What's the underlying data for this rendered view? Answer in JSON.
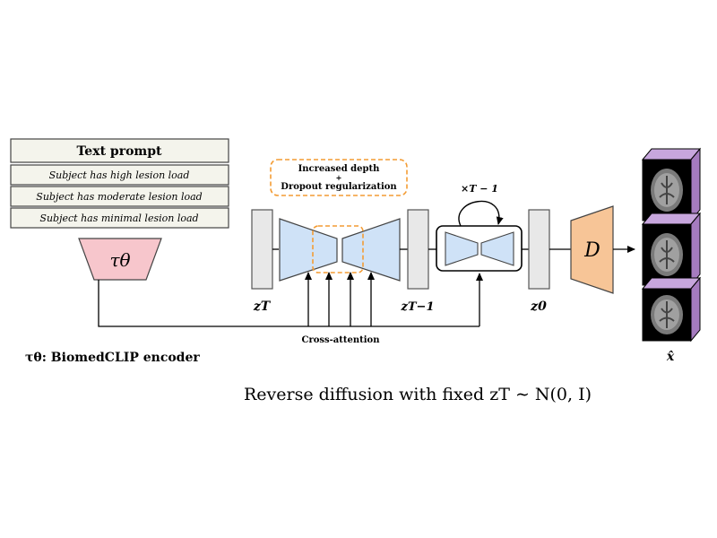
{
  "text_prompt": {
    "title": "Text prompt",
    "rows": [
      "Subject has high lesion load",
      "Subject has moderate lesion load",
      "Subject has minimal lesion load"
    ]
  },
  "encoder": {
    "symbol": "τθ",
    "legend": "τθ: BiomedCLIP encoder"
  },
  "unet_note": {
    "line1": "Increased depth",
    "line2": "+",
    "line3": "Dropout regularization"
  },
  "labels": {
    "z_T": "zT",
    "z_T_minus_1": "zT−1",
    "z_0": "z0",
    "loop": "×T − 1",
    "cross_attention": "Cross-attention",
    "decoder": "D",
    "output": "x̂"
  },
  "caption": "Reverse diffusion with fixed zT ∼ N(0, I)",
  "colors": {
    "prompt_fill": "#f4f4ec",
    "encoder_fill": "#f7c6cc",
    "unet_fill": "#cfe2f7",
    "latent_fill": "#e8e8e8",
    "decoder_fill": "#f7c597",
    "dashed_accent": "#f39c34",
    "cube_side": "#a57bbf"
  }
}
